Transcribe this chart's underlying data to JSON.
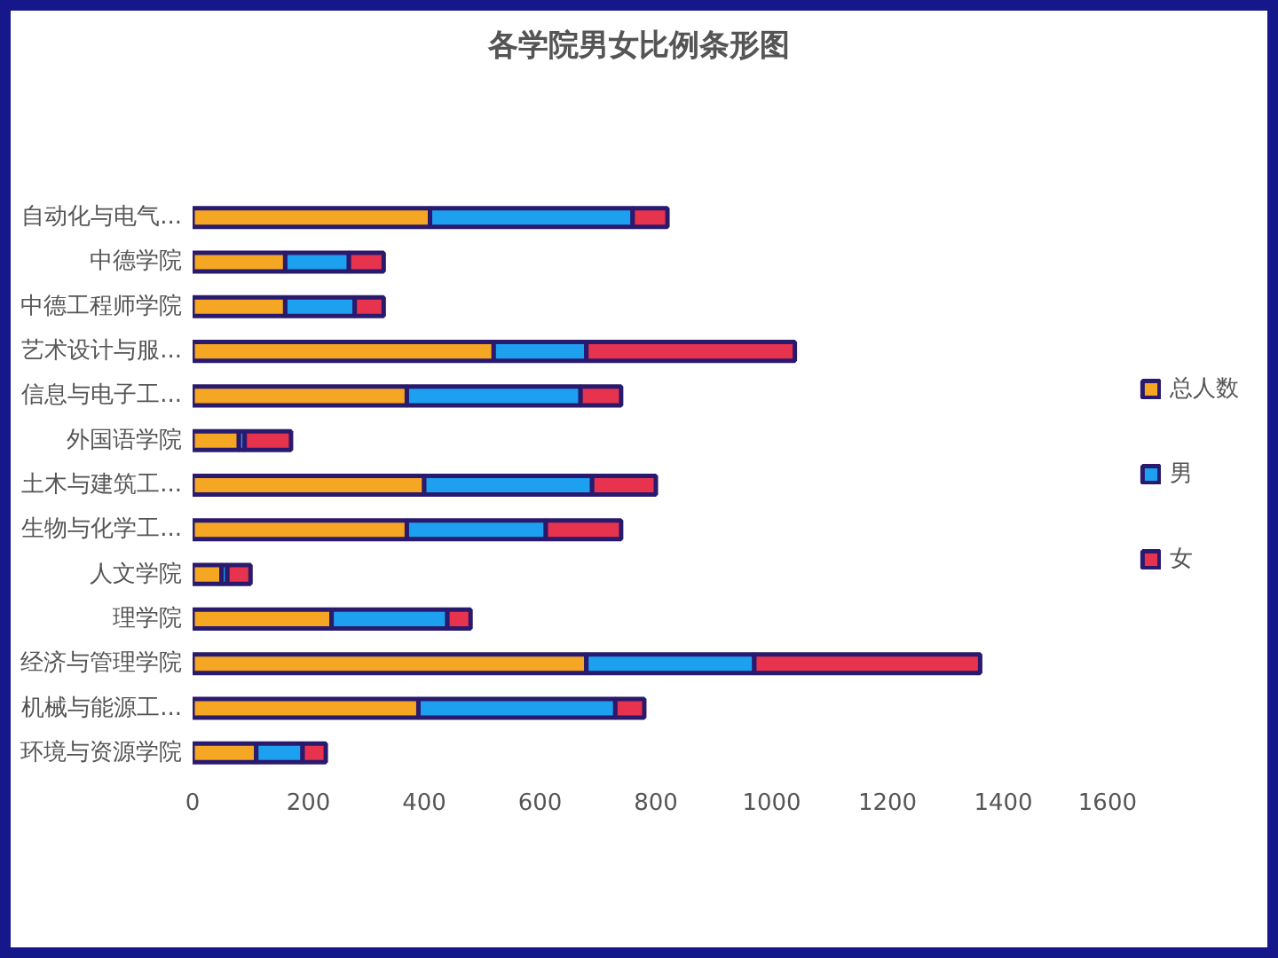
{
  "chart_data": {
    "type": "bar",
    "orientation": "horizontal",
    "stacked": true,
    "title": "各学院男女比例条形图",
    "categories": [
      "自动化与电气...",
      "中德学院",
      "中德工程师学院",
      "艺术设计与服...",
      "信息与电子工...",
      "外国语学院",
      "土木与建筑工...",
      "生物与化学工...",
      "人文学院",
      "理学院",
      "经济与管理学院",
      "机械与能源工...",
      "环境与资源学院"
    ],
    "series": [
      {
        "name": "总人数",
        "color": "#f5a623",
        "values": [
          410,
          160,
          160,
          520,
          370,
          80,
          400,
          370,
          50,
          240,
          680,
          390,
          110
        ]
      },
      {
        "name": "男",
        "color": "#1ea0f0",
        "values": [
          350,
          110,
          120,
          160,
          300,
          10,
          290,
          240,
          10,
          200,
          290,
          340,
          80
        ]
      },
      {
        "name": "女",
        "color": "#e8334f",
        "values": [
          60,
          60,
          50,
          360,
          70,
          80,
          110,
          130,
          40,
          40,
          390,
          50,
          40
        ]
      }
    ],
    "xlim": [
      0,
      1600
    ],
    "xticks": [
      0,
      200,
      400,
      600,
      800,
      1000,
      1200,
      1400,
      1600
    ],
    "grid": false,
    "legend": "right"
  }
}
